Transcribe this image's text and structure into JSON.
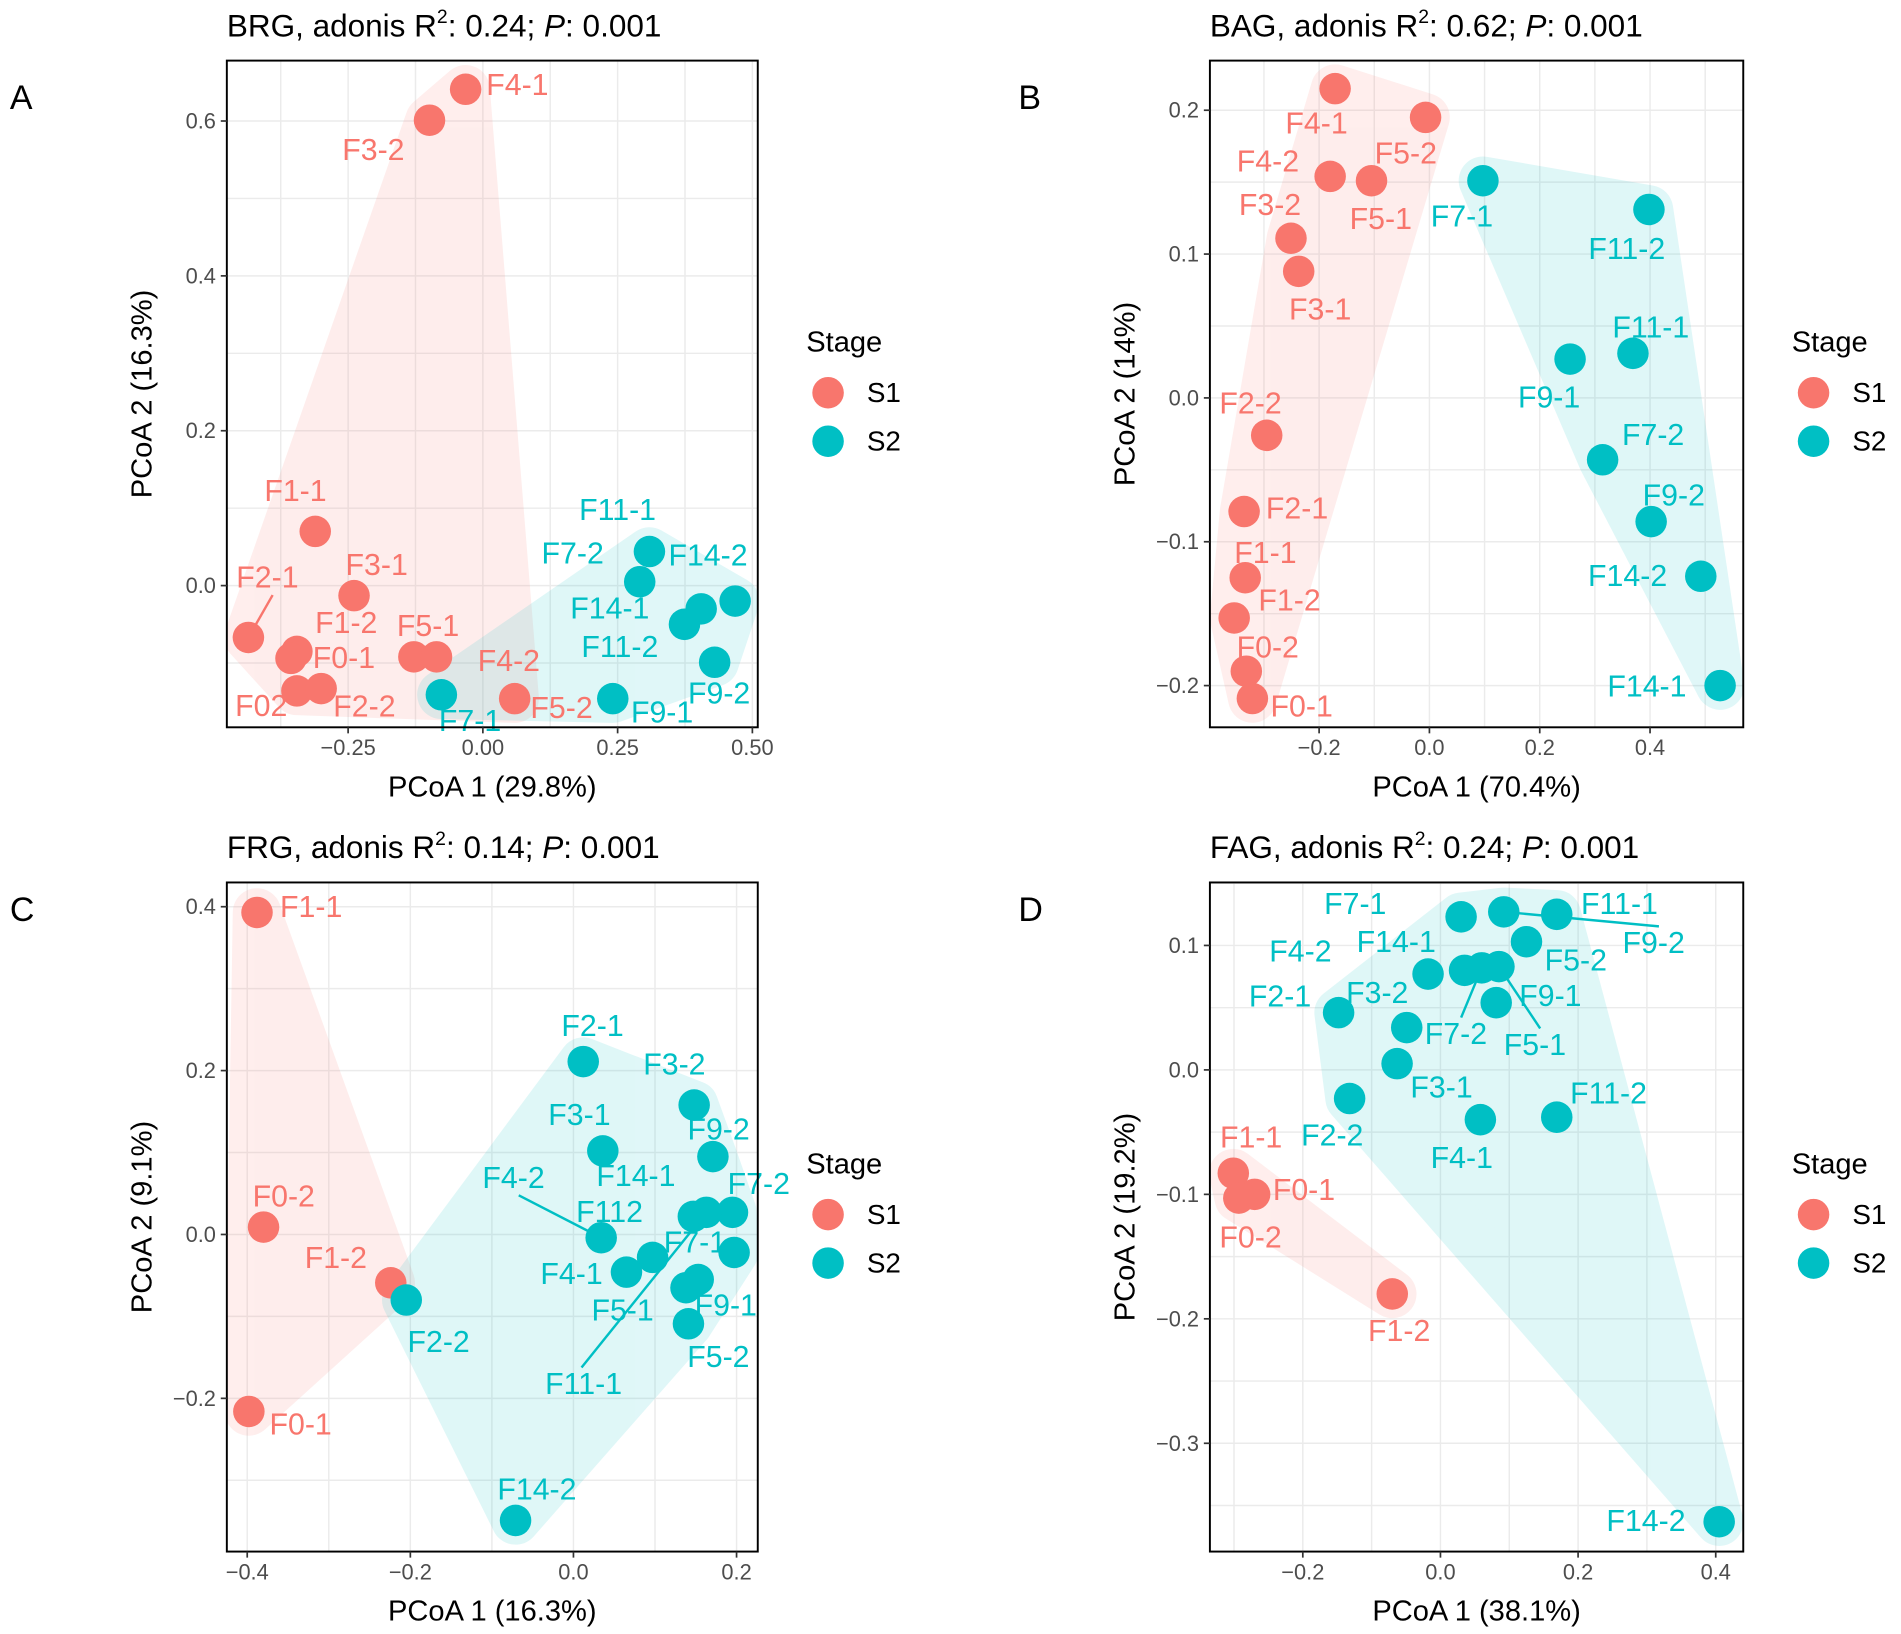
{
  "chart_data": [
    {
      "type": "scatter",
      "panel": "A",
      "title": {
        "prefix": "BRG, adonis R",
        "sup": "2",
        "mid": ": 0.24; ",
        "p_label": "P",
        "suffix": ": 0.001"
      },
      "xlabel": "PCoA 1 (29.8%)",
      "ylabel": "PCoA 2 (16.3%)",
      "xlim": [
        -0.475,
        0.51
      ],
      "ylim": [
        -0.183,
        0.678
      ],
      "xticks": [
        -0.25,
        0,
        0.25,
        0.5
      ],
      "xtick_labels": [
        "-0.25",
        "0.00",
        "0.25",
        "0.50"
      ],
      "yticks": [
        0,
        0.2,
        0.4,
        0.6
      ],
      "ytick_labels": [
        "0.0",
        "0.2",
        "0.4",
        "0.6"
      ],
      "grid": true,
      "legend": {
        "title": "Stage",
        "position": "right"
      },
      "series": [
        {
          "name": "S1",
          "color": "#F8766D",
          "points": [
            {
              "label": "F4-1",
              "x": -0.032,
              "y": 0.641
            },
            {
              "label": "F3-2",
              "x": -0.099,
              "y": 0.601
            },
            {
              "label": "F1-1",
              "x": -0.311,
              "y": 0.07
            },
            {
              "label": "F3-1",
              "x": -0.239,
              "y": -0.013
            },
            {
              "label": "F2-1",
              "x": -0.435,
              "y": -0.067
            },
            {
              "label": "F1-2",
              "x": -0.345,
              "y": -0.085
            },
            {
              "label": "F0-1",
              "x": -0.356,
              "y": -0.094
            },
            {
              "label": "F5-1",
              "x": -0.128,
              "y": -0.092
            },
            {
              "label": "F4-2",
              "x": -0.086,
              "y": -0.092
            },
            {
              "label": "F02",
              "x": -0.345,
              "y": -0.136
            },
            {
              "label": "F2-2",
              "x": -0.3,
              "y": -0.133
            },
            {
              "label": "F5-2",
              "x": 0.059,
              "y": -0.146
            }
          ]
        },
        {
          "name": "S2",
          "color": "#00BFC4",
          "points": [
            {
              "label": "F11-1",
              "x": 0.309,
              "y": 0.044
            },
            {
              "label": "F7-2",
              "x": 0.291,
              "y": 0.005
            },
            {
              "label": "F14-2",
              "x": 0.468,
              "y": -0.02
            },
            {
              "label": "F14-1",
              "x": 0.405,
              "y": -0.03
            },
            {
              "label": "F11-2",
              "x": 0.374,
              "y": -0.05
            },
            {
              "label": "F9-2",
              "x": 0.43,
              "y": -0.099
            },
            {
              "label": "F9-1",
              "x": 0.241,
              "y": -0.146
            },
            {
              "label": "F7-1",
              "x": -0.077,
              "y": -0.141
            }
          ]
        }
      ]
    },
    {
      "type": "scatter",
      "panel": "B",
      "title": {
        "prefix": "BAG, adonis R",
        "sup": "2",
        "mid": ": 0.62; ",
        "p_label": "P",
        "suffix": ": 0.001"
      },
      "xlabel": "PCoA 1 (70.4%)",
      "ylabel": "PCoA 2 (14%)",
      "xlim": [
        -0.398,
        0.569
      ],
      "ylim": [
        -0.229,
        0.2345
      ],
      "xticks": [
        -0.2,
        0,
        0.2,
        0.4
      ],
      "xtick_labels": [
        "-0.2",
        "0.0",
        "0.2",
        "0.4"
      ],
      "yticks": [
        -0.2,
        -0.1,
        0,
        0.1,
        0.2
      ],
      "ytick_labels": [
        "-0.2",
        "-0.1",
        "0.0",
        "0.1",
        "0.2"
      ],
      "grid": true,
      "legend": {
        "title": "Stage",
        "position": "right"
      },
      "series": [
        {
          "name": "S1",
          "color": "#F8766D",
          "points": [
            {
              "label": "F4-1",
              "x": -0.171,
              "y": 0.215
            },
            {
              "label": "F5-2",
              "x": -0.007,
              "y": 0.195
            },
            {
              "label": "F4-2",
              "x": -0.18,
              "y": 0.154
            },
            {
              "label": "F5-1",
              "x": -0.105,
              "y": 0.151
            },
            {
              "label": "F3-2",
              "x": -0.251,
              "y": 0.111
            },
            {
              "label": "F3-1",
              "x": -0.237,
              "y": 0.088
            },
            {
              "label": "F2-2",
              "x": -0.295,
              "y": -0.026
            },
            {
              "label": "F2-1",
              "x": -0.336,
              "y": -0.079
            },
            {
              "label": "F1-1",
              "x": -0.334,
              "y": -0.125
            },
            {
              "label": "F1-2",
              "x": -0.354,
              "y": -0.153
            },
            {
              "label": "F0-2",
              "x": -0.332,
              "y": -0.19
            },
            {
              "label": "F0-1",
              "x": -0.321,
              "y": -0.209
            }
          ]
        },
        {
          "name": "S2",
          "color": "#00BFC4",
          "points": [
            {
              "label": "F7-1",
              "x": 0.097,
              "y": 0.151
            },
            {
              "label": "F11-2",
              "x": 0.398,
              "y": 0.131
            },
            {
              "label": "F11-1",
              "x": 0.369,
              "y": 0.031
            },
            {
              "label": "F9-1",
              "x": 0.255,
              "y": 0.027
            },
            {
              "label": "F7-2",
              "x": 0.314,
              "y": -0.043
            },
            {
              "label": "F9-2",
              "x": 0.402,
              "y": -0.086
            },
            {
              "label": "F14-2",
              "x": 0.492,
              "y": -0.124
            },
            {
              "label": "F14-1",
              "x": 0.527,
              "y": -0.2
            }
          ]
        }
      ]
    },
    {
      "type": "scatter",
      "panel": "C",
      "title": {
        "prefix": "FRG, adonis R",
        "sup": "2",
        "mid": ": 0.14; ",
        "p_label": "P",
        "suffix": ": 0.001"
      },
      "xlabel": "PCoA 1 (16.3%)",
      "ylabel": "PCoA 2 (9.1%)",
      "xlim": [
        -0.425,
        0.226
      ],
      "ylim": [
        -0.387,
        0.4296
      ],
      "xticks": [
        -0.4,
        -0.2,
        0,
        0.2
      ],
      "xtick_labels": [
        "-0.4",
        "-0.2",
        "0.0",
        "0.2"
      ],
      "yticks": [
        -0.2,
        0,
        0.2,
        0.4
      ],
      "ytick_labels": [
        "-0.2",
        "0.0",
        "0.2",
        "0.4"
      ],
      "grid": true,
      "legend": {
        "title": "Stage",
        "position": "right"
      },
      "series": [
        {
          "name": "S1",
          "color": "#F8766D",
          "points": [
            {
              "label": "F1-1",
              "x": -0.388,
              "y": 0.393
            },
            {
              "label": "F0-2",
              "x": -0.38,
              "y": 0.009
            },
            {
              "label": "F1-2",
              "x": -0.224,
              "y": -0.059
            },
            {
              "label": "F0-1",
              "x": -0.398,
              "y": -0.216
            }
          ]
        },
        {
          "name": "S2",
          "color": "#00BFC4",
          "points": [
            {
              "label": "F2-2",
              "x": -0.205,
              "y": -0.08
            },
            {
              "label": "F2-1",
              "x": 0.012,
              "y": 0.211
            },
            {
              "label": "F3-2",
              "x": 0.148,
              "y": 0.158
            },
            {
              "label": "F3-1",
              "x": 0.036,
              "y": 0.102
            },
            {
              "label": "F9-2",
              "x": 0.171,
              "y": 0.095
            },
            {
              "label": "F14-1",
              "x": 0.147,
              "y": 0.022
            },
            {
              "label": "F7-2",
              "x": 0.195,
              "y": 0.027
            },
            {
              "label": "F4-2",
              "x": 0.034,
              "y": -0.004
            },
            {
              "label": "F112",
              "x": 0.097,
              "y": -0.028
            },
            {
              "label": "F4-1",
              "x": 0.065,
              "y": -0.046
            },
            {
              "label": "F7-1",
              "x": 0.197,
              "y": -0.022
            },
            {
              "label": "F9-1",
              "x": 0.153,
              "y": -0.055
            },
            {
              "label": "F5-1",
              "x": 0.138,
              "y": -0.065
            },
            {
              "label": "F5-2",
              "x": 0.141,
              "y": -0.109
            },
            {
              "label": "F11-1",
              "x": 0.163,
              "y": 0.027
            },
            {
              "label": "F14-2",
              "x": -0.071,
              "y": -0.349
            }
          ]
        }
      ]
    },
    {
      "type": "scatter",
      "panel": "D",
      "title": {
        "prefix": "FAG, adonis R",
        "sup": "2",
        "mid": ": 0.24; ",
        "p_label": "P",
        "suffix": ": 0.001"
      },
      "xlabel": "PCoA 1 (38.1%)",
      "ylabel": "PCoA 2 (19.2%)",
      "xlim": [
        -0.335,
        0.44
      ],
      "ylim": [
        -0.387,
        0.1506
      ],
      "xticks": [
        -0.2,
        0,
        0.2,
        0.4
      ],
      "xtick_labels": [
        "-0.2",
        "0.0",
        "0.2",
        "0.4"
      ],
      "yticks": [
        -0.3,
        -0.2,
        -0.1,
        0,
        0.1
      ],
      "ytick_labels": [
        "-0.3",
        "-0.2",
        "-0.1",
        "0.0",
        "0.1"
      ],
      "grid": true,
      "legend": {
        "title": "Stage",
        "position": "right"
      },
      "series": [
        {
          "name": "S1",
          "color": "#F8766D",
          "points": [
            {
              "label": "F1-1",
              "x": -0.301,
              "y": -0.083
            },
            {
              "label": "F0-1",
              "x": -0.27,
              "y": -0.1
            },
            {
              "label": "F0-2",
              "x": -0.293,
              "y": -0.103
            },
            {
              "label": "F1-2",
              "x": -0.07,
              "y": -0.18
            }
          ]
        },
        {
          "name": "S2",
          "color": "#00BFC4",
          "points": [
            {
              "label": "F7-1",
              "x": 0.03,
              "y": 0.123
            },
            {
              "label": "F11-1",
              "x": 0.169,
              "y": 0.125
            },
            {
              "label": "F9-2",
              "x": 0.092,
              "y": 0.127
            },
            {
              "label": "F5-2",
              "x": 0.125,
              "y": 0.103
            },
            {
              "label": "F4-2",
              "x": -0.018,
              "y": 0.077
            },
            {
              "label": "F14-1",
              "x": 0.035,
              "y": 0.08
            },
            {
              "label": "F7-2",
              "x": 0.06,
              "y": 0.082
            },
            {
              "label": "F5-1",
              "x": 0.085,
              "y": 0.083
            },
            {
              "label": "F9-1",
              "x": 0.081,
              "y": 0.054
            },
            {
              "label": "F2-1",
              "x": -0.148,
              "y": 0.046
            },
            {
              "label": "F3-2",
              "x": -0.049,
              "y": 0.034
            },
            {
              "label": "F3-1",
              "x": -0.063,
              "y": 0.005
            },
            {
              "label": "F2-2",
              "x": -0.132,
              "y": -0.023
            },
            {
              "label": "F4-1",
              "x": 0.058,
              "y": -0.04
            },
            {
              "label": "F11-2",
              "x": 0.169,
              "y": -0.038
            },
            {
              "label": "F14-2",
              "x": 0.405,
              "y": -0.363
            }
          ]
        }
      ]
    }
  ]
}
